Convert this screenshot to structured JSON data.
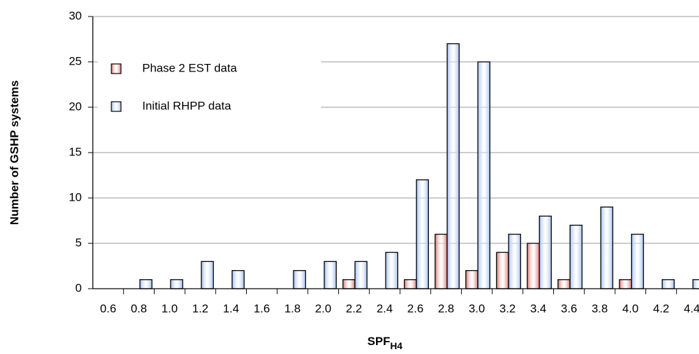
{
  "chart_data": {
    "type": "bar",
    "y_label": "Number of GSHP systems",
    "x_label": {
      "text": "SPF",
      "subscript": "H4"
    },
    "categories": [
      "0.6",
      "0.8",
      "1.0",
      "1.2",
      "1.4",
      "1.6",
      "1.8",
      "2.0",
      "2.2",
      "2.4",
      "2.6",
      "2.8",
      "3.0",
      "3.2",
      "3.4",
      "3.6",
      "3.8",
      "4.0",
      "4.2",
      "4.4"
    ],
    "series": [
      {
        "name": "Phase 2 EST data",
        "color": "#d9736b",
        "values": [
          0,
          0,
          0,
          0,
          0,
          0,
          0,
          0,
          1,
          0,
          1,
          6,
          2,
          4,
          5,
          1,
          0,
          1,
          0,
          0
        ]
      },
      {
        "name": "Initial RHPP data",
        "color": "#9dbcf0",
        "values": [
          0,
          1,
          1,
          3,
          2,
          0,
          2,
          3,
          3,
          4,
          12,
          27,
          25,
          6,
          8,
          7,
          9,
          6,
          1,
          1
        ]
      }
    ],
    "ylim": [
      0,
      30
    ],
    "yticks": [
      0,
      5,
      10,
      15,
      20,
      25,
      30
    ],
    "grid": true,
    "legend": "upper left"
  }
}
